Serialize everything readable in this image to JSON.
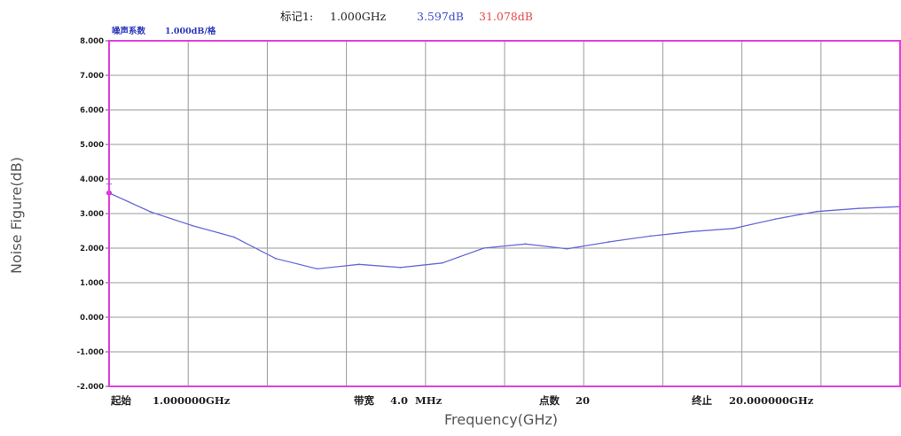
{
  "colors": {
    "frame": "#e040e0",
    "grid": "#9a9a9a",
    "trace": "#6a6ad8",
    "marker": "#cc33cc",
    "header_text": "#222222",
    "readout_blue": "#3f4fc4",
    "readout_red": "#e24a4a",
    "scale_label": "#2a36b8"
  },
  "header": {
    "marker_label": "标记1:",
    "frequency": "1.000GHz",
    "noise_figure": "3.597dB",
    "gain": "31.078dB"
  },
  "scale_label": {
    "name": "噪声系数",
    "value": "1.000dB/格"
  },
  "footer": {
    "start_label": "起始",
    "start_value": "1.000000GHz",
    "bandwidth_label": "带宽",
    "bandwidth_value": "4.0  MHz",
    "points_label": "点数",
    "points_value": "20",
    "stop_label": "终止",
    "stop_value": "20.000000GHz"
  },
  "chart_data": {
    "type": "line",
    "xlabel": "Frequency(GHz)",
    "ylabel": "Noise Figure(dB)",
    "xlim": [
      1,
      20
    ],
    "ylim": [
      -2,
      8
    ],
    "grid": true,
    "y_ticks": [
      "8.000",
      "7.000",
      "6.000",
      "5.000",
      "4.000",
      "3.000",
      "2.000",
      "1.000",
      "0.000",
      "-1.000",
      "-2.000"
    ],
    "series": [
      {
        "x": [
          1,
          2,
          3,
          4,
          5,
          6,
          7,
          8,
          9,
          10,
          11,
          12,
          13,
          14,
          15,
          16,
          17,
          18,
          19,
          20
        ],
        "values": [
          3.597,
          3.05,
          2.65,
          2.32,
          1.7,
          1.4,
          1.53,
          1.44,
          1.57,
          2.0,
          2.12,
          1.98,
          2.18,
          2.35,
          2.48,
          2.57,
          2.84,
          3.06,
          3.15,
          3.2
        ]
      }
    ],
    "marker": {
      "x": 1,
      "y": 3.597
    }
  }
}
